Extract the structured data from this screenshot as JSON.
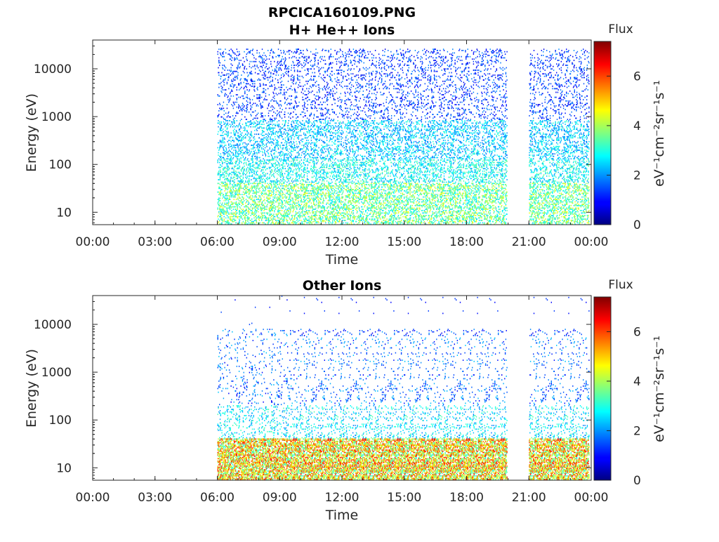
{
  "figure": {
    "title": "RPCICA160109.PNG"
  },
  "chart_data": [
    {
      "type": "heatmap",
      "title": "H+ He++ Ions",
      "xlabel": "Time",
      "ylabel": "Energy (eV)",
      "x_ticks": [
        "00:00",
        "03:00",
        "06:00",
        "09:00",
        "12:00",
        "15:00",
        "18:00",
        "21:00",
        "00:00"
      ],
      "xlim_hours": [
        0,
        24
      ],
      "y_scale": "log",
      "y_ticks": [
        "10",
        "100",
        "1000",
        "10000"
      ],
      "ylim": [
        5.5,
        40000
      ],
      "data_intervals_hours": [
        [
          6.0,
          19.95
        ],
        [
          21.0,
          23.9
        ]
      ],
      "colorbar": {
        "label": "Flux",
        "unit": "eV⁻¹cm⁻²sr⁻¹s⁻¹",
        "ticks": [
          "0",
          "2",
          "4",
          "6"
        ],
        "range": [
          0,
          7.4
        ],
        "colormap": "jet"
      }
    },
    {
      "type": "heatmap",
      "title": "Other Ions",
      "xlabel": "Time",
      "ylabel": "Energy (eV)",
      "x_ticks": [
        "00:00",
        "03:00",
        "06:00",
        "09:00",
        "12:00",
        "15:00",
        "18:00",
        "21:00",
        "00:00"
      ],
      "xlim_hours": [
        0,
        24
      ],
      "y_scale": "log",
      "y_ticks": [
        "10",
        "100",
        "1000",
        "10000"
      ],
      "ylim": [
        5.5,
        40000
      ],
      "data_intervals_hours": [
        [
          6.0,
          19.95
        ],
        [
          21.0,
          23.9
        ]
      ],
      "colorbar": {
        "label": "Flux",
        "unit": "eV⁻¹cm⁻²sr⁻¹s⁻¹",
        "ticks": [
          "0",
          "2",
          "4",
          "6"
        ],
        "range": [
          0,
          7.4
        ],
        "colormap": "jet"
      }
    }
  ]
}
